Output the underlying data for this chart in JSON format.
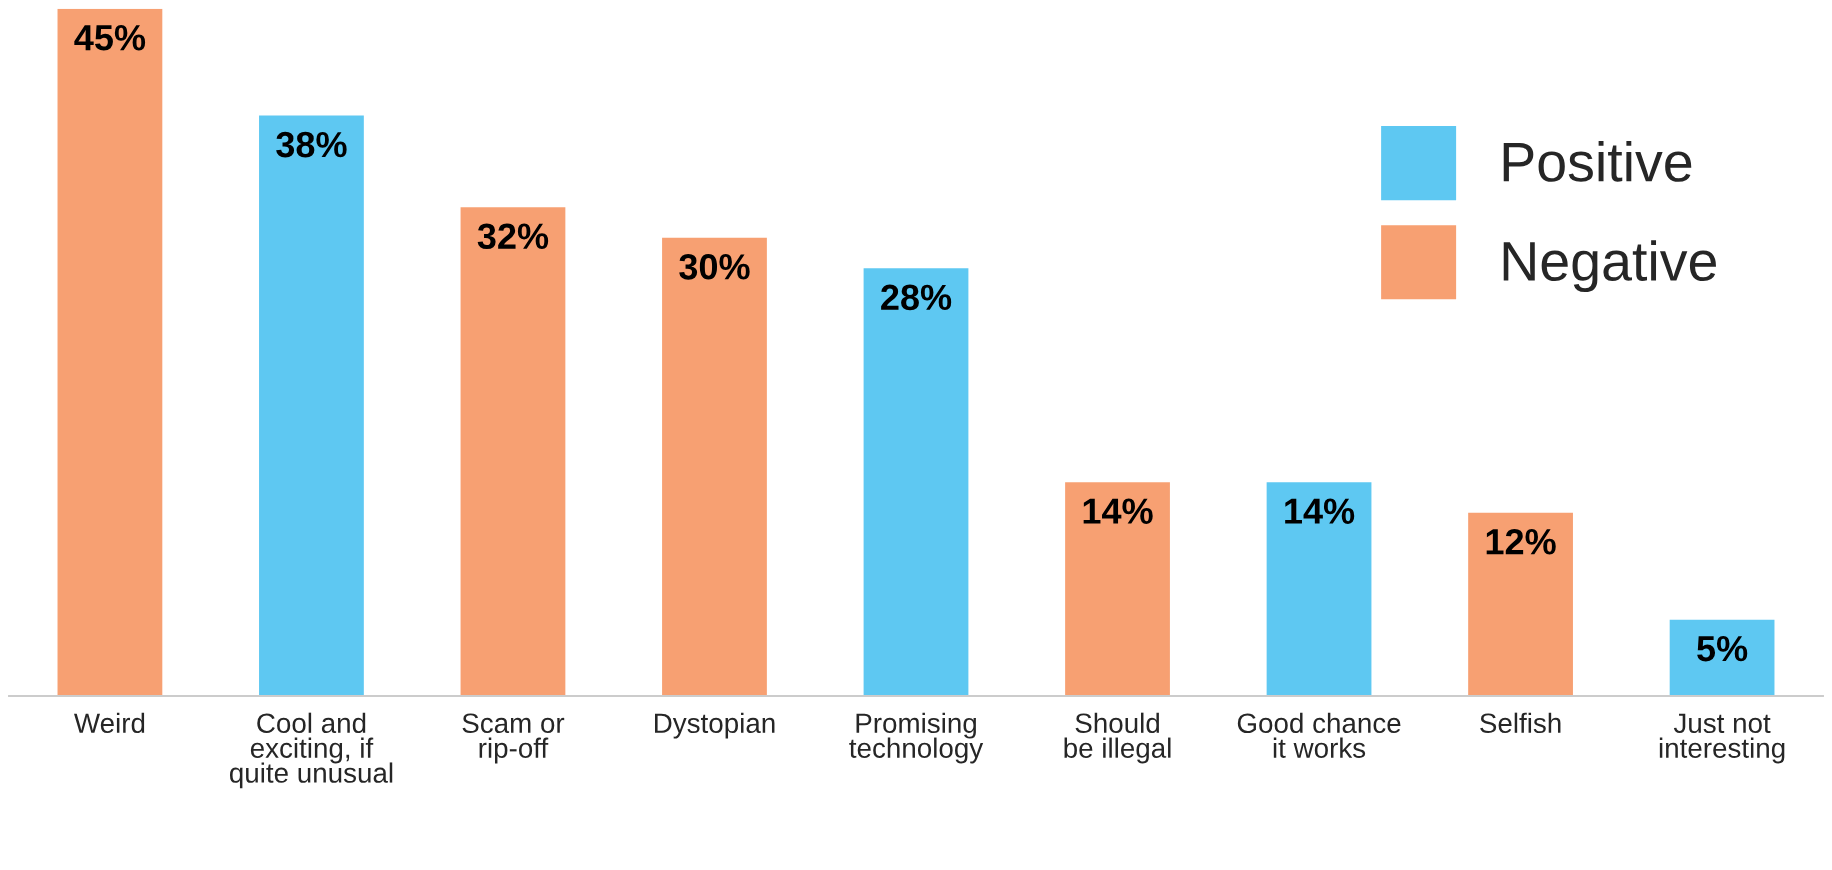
{
  "chart_data": {
    "type": "bar",
    "categories": [
      "Weird",
      "Cool and\nexciting, if\nquite unusual",
      "Scam or\nrip-off",
      "Dystopian",
      "Promising\ntechnology",
      "Should\nbe illegal",
      "Good chance\nit works",
      "Selfish",
      "Just not\ninteresting"
    ],
    "series": [
      {
        "name": "Positive",
        "color": "#5ec8f2",
        "values": [
          null,
          38,
          null,
          null,
          28,
          null,
          14,
          null,
          5
        ],
        "value_labels": [
          null,
          "38%",
          null,
          null,
          "28%",
          null,
          "14%",
          null,
          "5%"
        ]
      },
      {
        "name": "Negative",
        "color": "#f7a072",
        "values": [
          45,
          null,
          32,
          30,
          null,
          14,
          null,
          12,
          null
        ],
        "value_labels": [
          "45%",
          null,
          "32%",
          "30%",
          null,
          "14%",
          null,
          "12%",
          null
        ]
      }
    ],
    "legend": "top right",
    "grid": false
  }
}
